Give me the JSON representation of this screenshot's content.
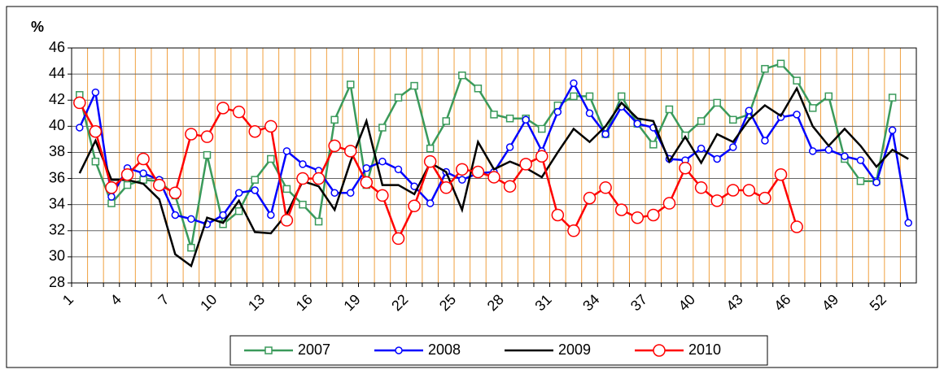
{
  "chart_data": {
    "type": "line",
    "y_label": "%",
    "categories": [
      "1",
      null,
      null,
      "4",
      null,
      null,
      "7",
      null,
      null,
      "10",
      null,
      null,
      "13",
      null,
      null,
      "16",
      null,
      null,
      "19",
      null,
      null,
      "22",
      null,
      null,
      "25",
      null,
      null,
      "28",
      null,
      null,
      "31",
      null,
      null,
      "34",
      null,
      null,
      "37",
      null,
      null,
      "40",
      null,
      null,
      "43",
      null,
      null,
      "46",
      null,
      null,
      "49",
      null,
      null,
      "52",
      null
    ],
    "ylim": [
      28,
      46
    ],
    "yticks": [
      28,
      30,
      32,
      34,
      36,
      38,
      40,
      42,
      44,
      46
    ],
    "grid": true,
    "legend": "bottom",
    "series": [
      {
        "name": "2007",
        "color": "#3a9a5b",
        "marker": "square",
        "values": [
          42.4,
          37.3,
          34.1,
          35.5,
          35.9,
          35.8,
          34.7,
          30.7,
          37.8,
          32.5,
          33.5,
          35.9,
          37.5,
          35.2,
          34.0,
          32.7,
          40.5,
          43.2,
          35.5,
          39.9,
          42.2,
          43.1,
          38.3,
          40.4,
          43.9,
          42.9,
          40.9,
          40.6,
          40.6,
          39.8,
          41.6,
          42.3,
          42.3,
          39.4,
          42.3,
          40.2,
          38.6,
          41.3,
          39.3,
          40.4,
          41.8,
          40.5,
          40.9,
          44.4,
          44.8,
          43.5,
          41.4,
          42.3,
          37.5,
          35.8,
          35.8,
          42.2,
          null
        ]
      },
      {
        "name": "2008",
        "color": "#0000ff",
        "marker": "circle",
        "values": [
          39.9,
          42.6,
          34.6,
          36.8,
          36.4,
          35.9,
          33.2,
          32.9,
          32.5,
          33.2,
          34.9,
          35.1,
          33.2,
          38.1,
          37.1,
          36.6,
          34.9,
          34.9,
          36.8,
          37.3,
          36.7,
          35.4,
          34.1,
          36.5,
          35.9,
          36.4,
          36.5,
          38.4,
          40.5,
          38.1,
          41.1,
          43.3,
          41.0,
          39.4,
          41.5,
          40.2,
          39.9,
          37.5,
          37.4,
          38.3,
          37.5,
          38.4,
          41.2,
          38.9,
          40.7,
          40.9,
          38.1,
          38.2,
          37.7,
          37.4,
          35.7,
          39.7,
          32.6
        ]
      },
      {
        "name": "2009",
        "color": "#000000",
        "marker": "none",
        "values": [
          36.4,
          38.9,
          35.9,
          35.9,
          35.6,
          34.4,
          30.2,
          29.3,
          33.0,
          32.6,
          34.3,
          31.9,
          31.8,
          33.3,
          35.8,
          35.4,
          33.6,
          37.3,
          40.4,
          35.5,
          35.5,
          34.8,
          37.2,
          36.5,
          33.6,
          38.8,
          36.7,
          37.3,
          36.8,
          36.1,
          38.0,
          39.8,
          38.8,
          40.0,
          41.8,
          40.6,
          40.4,
          37.3,
          39.2,
          37.2,
          39.4,
          38.8,
          40.5,
          41.6,
          40.8,
          42.9,
          40.0,
          38.5,
          39.8,
          38.5,
          36.9,
          38.2,
          37.5
        ]
      },
      {
        "name": "2010",
        "color": "#ff0000",
        "marker": "big-circle",
        "values": [
          41.8,
          39.6,
          35.3,
          36.3,
          37.5,
          35.5,
          34.9,
          39.4,
          39.2,
          41.4,
          41.1,
          39.6,
          40.0,
          32.8,
          36.0,
          36.0,
          38.5,
          38.1,
          35.7,
          34.7,
          31.4,
          33.9,
          37.3,
          35.3,
          36.7,
          36.5,
          36.1,
          35.4,
          37.1,
          37.7,
          33.2,
          32.0,
          34.5,
          35.3,
          33.6,
          33.0,
          33.2,
          34.1,
          36.8,
          35.3,
          34.3,
          35.1,
          35.1,
          34.5,
          36.3,
          32.3,
          null,
          null,
          null,
          null,
          null,
          null,
          null
        ]
      }
    ]
  }
}
